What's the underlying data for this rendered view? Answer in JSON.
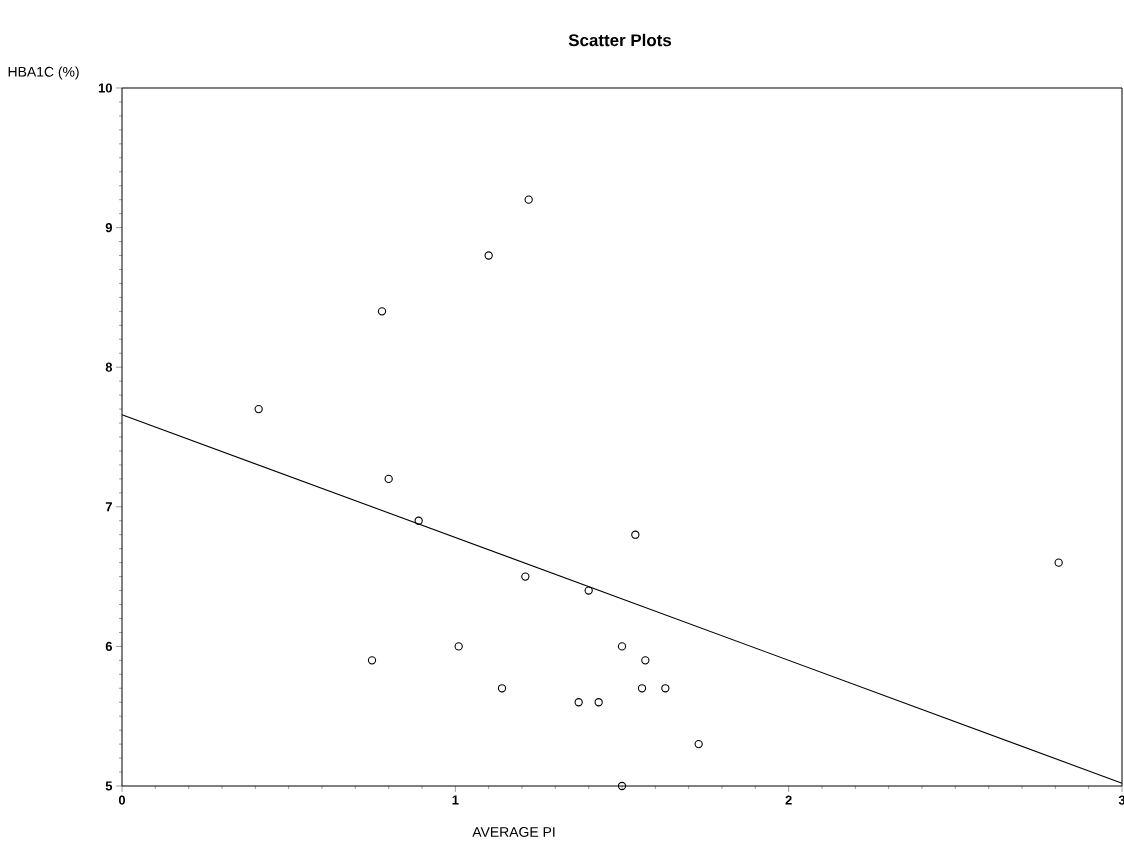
{
  "chart_data": {
    "type": "scatter",
    "title": "Scatter Plots",
    "xlabel": "AVERAGE PI",
    "ylabel": "HBA1C (%)",
    "xlim": [
      0,
      3
    ],
    "ylim": [
      5,
      10
    ],
    "xticks": [
      0,
      1,
      2,
      3
    ],
    "yticks": [
      5,
      6,
      7,
      8,
      9,
      10
    ],
    "grid": false,
    "marker": "circle",
    "series": [
      {
        "color": "#000000",
        "x": [
          0.41,
          0.75,
          0.78,
          0.8,
          0.89,
          1.01,
          1.1,
          1.14,
          1.21,
          1.22,
          1.37,
          1.4,
          1.43,
          1.5,
          1.5,
          1.54,
          1.56,
          1.57,
          1.63,
          1.73,
          2.81
        ],
        "values": [
          7.7,
          5.9,
          8.4,
          7.2,
          6.9,
          6.0,
          8.8,
          5.7,
          6.5,
          9.2,
          5.6,
          6.4,
          5.6,
          6.0,
          5.0,
          6.8,
          5.7,
          5.9,
          5.7,
          5.3,
          6.6
        ]
      },
      {
        "type": "line",
        "color": "#000000",
        "marker": "none",
        "x": [
          0,
          3
        ],
        "values": [
          7.66,
          5.02
        ]
      }
    ]
  }
}
